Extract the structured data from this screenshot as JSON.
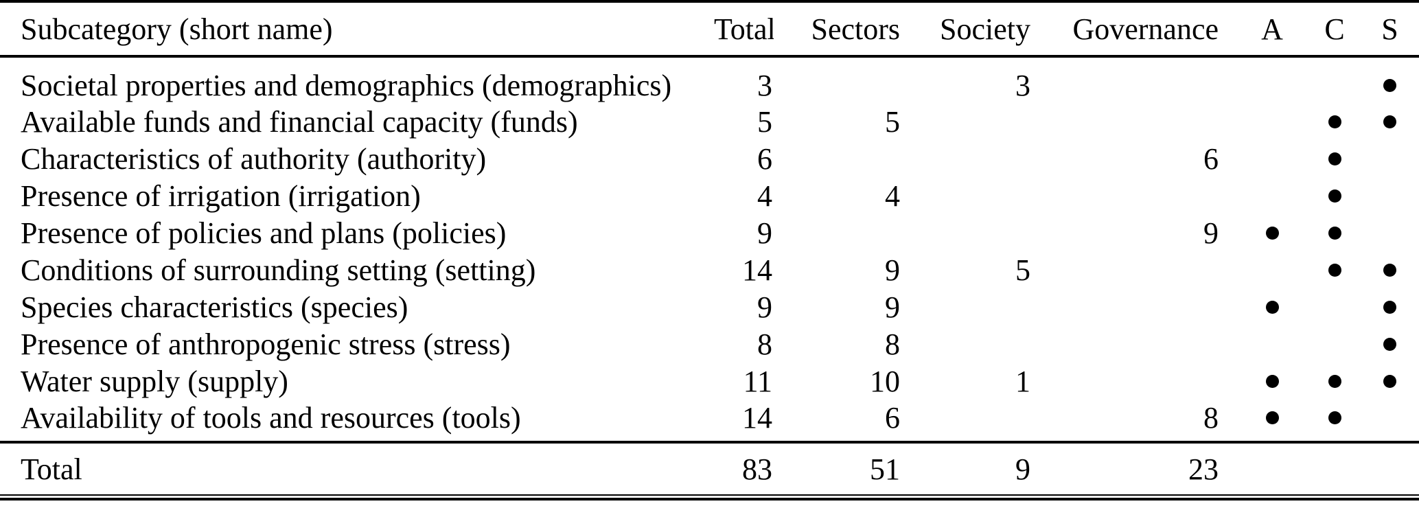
{
  "colors": {
    "background": "#ffffff",
    "text": "#000000",
    "rule": "#000000",
    "dot": "#000000"
  },
  "table": {
    "headers": {
      "subcategory": "Subcategory (short name)",
      "total": "Total",
      "sectors": "Sectors",
      "society": "Society",
      "governance": "Governance",
      "a": "A",
      "c": "C",
      "s": "S"
    },
    "rows": [
      {
        "name": "Societal properties and demographics (demographics)",
        "total": "3",
        "sectors": "",
        "society": "3",
        "governance": "",
        "a": false,
        "c": false,
        "s": true
      },
      {
        "name": "Available funds and financial capacity (funds)",
        "total": "5",
        "sectors": "5",
        "society": "",
        "governance": "",
        "a": false,
        "c": true,
        "s": true
      },
      {
        "name": "Characteristics of authority (authority)",
        "total": "6",
        "sectors": "",
        "society": "",
        "governance": "6",
        "a": false,
        "c": true,
        "s": false
      },
      {
        "name": "Presence of irrigation (irrigation)",
        "total": "4",
        "sectors": "4",
        "society": "",
        "governance": "",
        "a": false,
        "c": true,
        "s": false
      },
      {
        "name": "Presence of policies and plans (policies)",
        "total": "9",
        "sectors": "",
        "society": "",
        "governance": "9",
        "a": true,
        "c": true,
        "s": false
      },
      {
        "name": "Conditions of surrounding setting (setting)",
        "total": "14",
        "sectors": "9",
        "society": "5",
        "governance": "",
        "a": false,
        "c": true,
        "s": true
      },
      {
        "name": "Species characteristics (species)",
        "total": "9",
        "sectors": "9",
        "society": "",
        "governance": "",
        "a": true,
        "c": false,
        "s": true
      },
      {
        "name": "Presence of anthropogenic stress (stress)",
        "total": "8",
        "sectors": "8",
        "society": "",
        "governance": "",
        "a": false,
        "c": false,
        "s": true
      },
      {
        "name": "Water supply (supply)",
        "total": "11",
        "sectors": "10",
        "society": "1",
        "governance": "",
        "a": true,
        "c": true,
        "s": true
      },
      {
        "name": "Availability of tools and resources (tools)",
        "total": "14",
        "sectors": "6",
        "society": "",
        "governance": "8",
        "a": true,
        "c": true,
        "s": false
      }
    ],
    "footer": {
      "label": "Total",
      "total": "83",
      "sectors": "51",
      "society": "9",
      "governance": "23"
    }
  }
}
